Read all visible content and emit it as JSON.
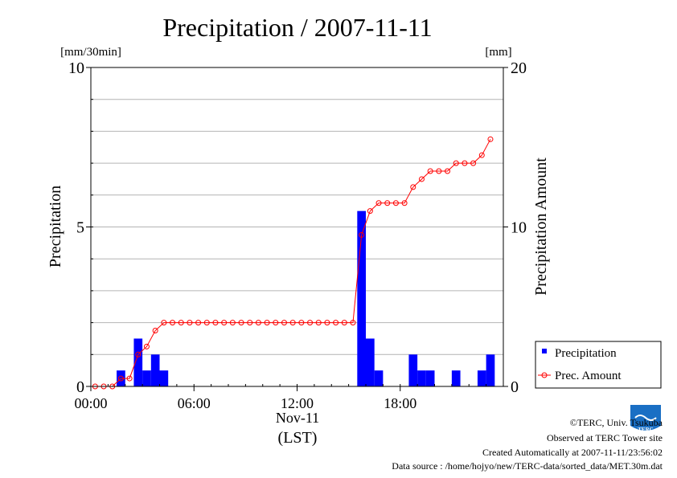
{
  "chart_data": {
    "type": "bar",
    "title": "Precipitation / 2007-11-11",
    "ylabel": "Precipitation",
    "y2label": "Precipitation Amount",
    "y_unit": "[mm/30min]",
    "y2_unit": "[mm]",
    "ylim": [
      0,
      10
    ],
    "y2lim": [
      0,
      20
    ],
    "y_ticks": [
      "0",
      "5",
      "10"
    ],
    "y2_ticks": [
      "0",
      "10",
      "20"
    ],
    "x_ticks": [
      "00:00",
      "06:00",
      "12:00",
      "18:00"
    ],
    "x_date_label": "Nov-11",
    "x_tz_label": "(LST)",
    "grid": true,
    "legend_position": "bottom-right",
    "x": [
      "00:00",
      "00:30",
      "01:00",
      "01:30",
      "02:00",
      "02:30",
      "03:00",
      "03:30",
      "04:00",
      "04:30",
      "05:00",
      "05:30",
      "06:00",
      "06:30",
      "07:00",
      "07:30",
      "08:00",
      "08:30",
      "09:00",
      "09:30",
      "10:00",
      "10:30",
      "11:00",
      "11:30",
      "12:00",
      "12:30",
      "13:00",
      "13:30",
      "14:00",
      "14:30",
      "15:00",
      "15:30",
      "16:00",
      "16:30",
      "17:00",
      "17:30",
      "18:00",
      "18:30",
      "19:00",
      "19:30",
      "20:00",
      "20:30",
      "21:00",
      "21:30",
      "22:00",
      "22:30",
      "23:00"
    ],
    "series": [
      {
        "name": "Precipitation",
        "type": "bar",
        "axis": "left",
        "color": "#0000ff",
        "values": [
          0,
          0,
          0,
          0.5,
          0,
          1.5,
          0.5,
          1.0,
          0.5,
          0,
          0,
          0,
          0,
          0,
          0,
          0,
          0,
          0,
          0,
          0,
          0,
          0,
          0,
          0,
          0,
          0,
          0,
          0,
          0,
          0,
          0,
          5.5,
          1.5,
          0.5,
          0,
          0,
          0,
          1.0,
          0.5,
          0.5,
          0,
          0,
          0.5,
          0,
          0,
          0.5,
          1.0
        ]
      },
      {
        "name": "Prec. Amount",
        "type": "line",
        "axis": "right",
        "color": "#ff0000",
        "values": [
          0,
          0,
          0,
          0.5,
          0.5,
          2.0,
          2.5,
          3.5,
          4.0,
          4.0,
          4.0,
          4.0,
          4.0,
          4.0,
          4.0,
          4.0,
          4.0,
          4.0,
          4.0,
          4.0,
          4.0,
          4.0,
          4.0,
          4.0,
          4.0,
          4.0,
          4.0,
          4.0,
          4.0,
          4.0,
          4.0,
          9.5,
          11.0,
          11.5,
          11.5,
          11.5,
          11.5,
          12.5,
          13.0,
          13.5,
          13.5,
          13.5,
          14.0,
          14.0,
          14.0,
          14.5,
          15.5
        ]
      }
    ]
  },
  "footer": {
    "copyright": "©TERC, Univ. Tsukuba",
    "observed": "Observed at TERC Tower site",
    "created": "Created Automatically at 2007-11-11/23:56:02",
    "source": "Data source : /home/hojyo/new/TERC-data/sorted_data/MET.30m.dat"
  },
  "logo": {
    "text": "TERC",
    "color": "#1a6fc4"
  }
}
